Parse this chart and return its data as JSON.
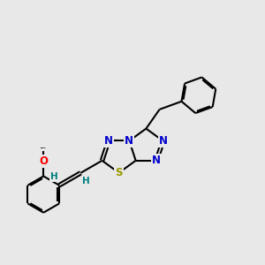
{
  "background_color": "#e8e8e8",
  "bond_color": "#000000",
  "line_width": 1.5,
  "atom_colors": {
    "N": "#0000cc",
    "S": "#999900",
    "O": "#ff0000",
    "H": "#008080",
    "C": "#000000"
  },
  "font_size_atom": 8.5,
  "font_size_H": 7.5,
  "font_size_methoxy": 7.0
}
